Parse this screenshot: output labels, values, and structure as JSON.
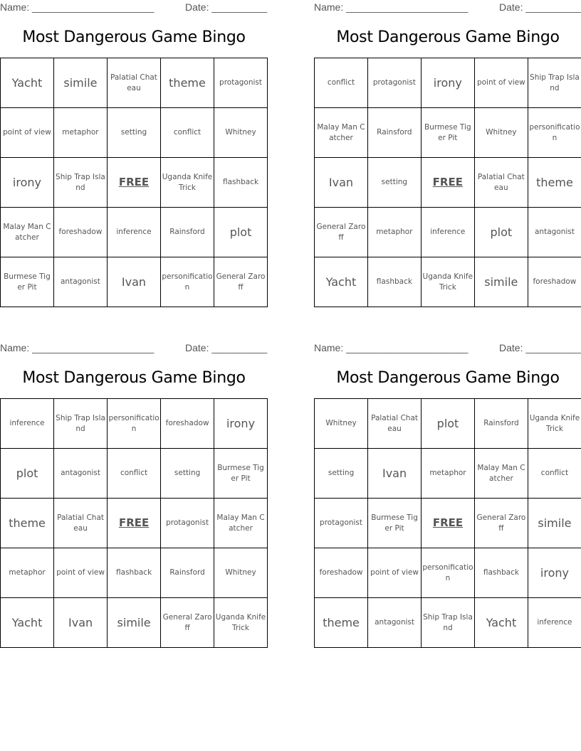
{
  "header": {
    "name_label": "Name: ______________________",
    "date_label": "Date: __________"
  },
  "title": "Most Dangerous Game Bingo",
  "cards": [
    {
      "rows": [
        [
          "Yacht",
          "simile",
          "Palatial Chateau",
          "theme",
          "protagonist"
        ],
        [
          "point of view",
          "metaphor",
          "setting",
          "conflict",
          "Whitney"
        ],
        [
          "irony",
          "Ship Trap Island",
          "FREE",
          "Uganda Knife Trick",
          "flashback"
        ],
        [
          "Malay Man Catcher",
          "foreshadow",
          "inference",
          "Rainsford",
          "plot"
        ],
        [
          "Burmese Tiger Pit",
          "antagonist",
          "Ivan",
          "personification",
          "General Zaroff"
        ]
      ]
    },
    {
      "rows": [
        [
          "conflict",
          "protagonist",
          "irony",
          "point of view",
          "Ship Trap Island"
        ],
        [
          "Malay Man Catcher",
          "Rainsford",
          "Burmese Tiger Pit",
          "Whitney",
          "personification"
        ],
        [
          "Ivan",
          "setting",
          "FREE",
          "Palatial Chateau",
          "theme"
        ],
        [
          "General Zaroff",
          "metaphor",
          "inference",
          "plot",
          "antagonist"
        ],
        [
          "Yacht",
          "flashback",
          "Uganda Knife Trick",
          "simile",
          "foreshadow"
        ]
      ]
    },
    {
      "rows": [
        [
          "inference",
          "Ship Trap Island",
          "personification",
          "foreshadow",
          "irony"
        ],
        [
          "plot",
          "antagonist",
          "conflict",
          "setting",
          "Burmese Tiger Pit"
        ],
        [
          "theme",
          "Palatial Chateau",
          "FREE",
          "protagonist",
          "Malay Man Catcher"
        ],
        [
          "metaphor",
          "point of view",
          "flashback",
          "Rainsford",
          "Whitney"
        ],
        [
          "Yacht",
          "Ivan",
          "simile",
          "General Zaroff",
          "Uganda Knife Trick"
        ]
      ]
    },
    {
      "rows": [
        [
          "Whitney",
          "Palatial Chateau",
          "plot",
          "Rainsford",
          "Uganda Knife Trick"
        ],
        [
          "setting",
          "Ivan",
          "metaphor",
          "Malay Man Catcher",
          "conflict"
        ],
        [
          "protagonist",
          "Burmese Tiger Pit",
          "FREE",
          "General Zaroff",
          "simile"
        ],
        [
          "foreshadow",
          "point of view",
          "personification",
          "flashback",
          "irony"
        ],
        [
          "theme",
          "antagonist",
          "Ship Trap Island",
          "Yacht",
          "inference"
        ]
      ]
    }
  ]
}
